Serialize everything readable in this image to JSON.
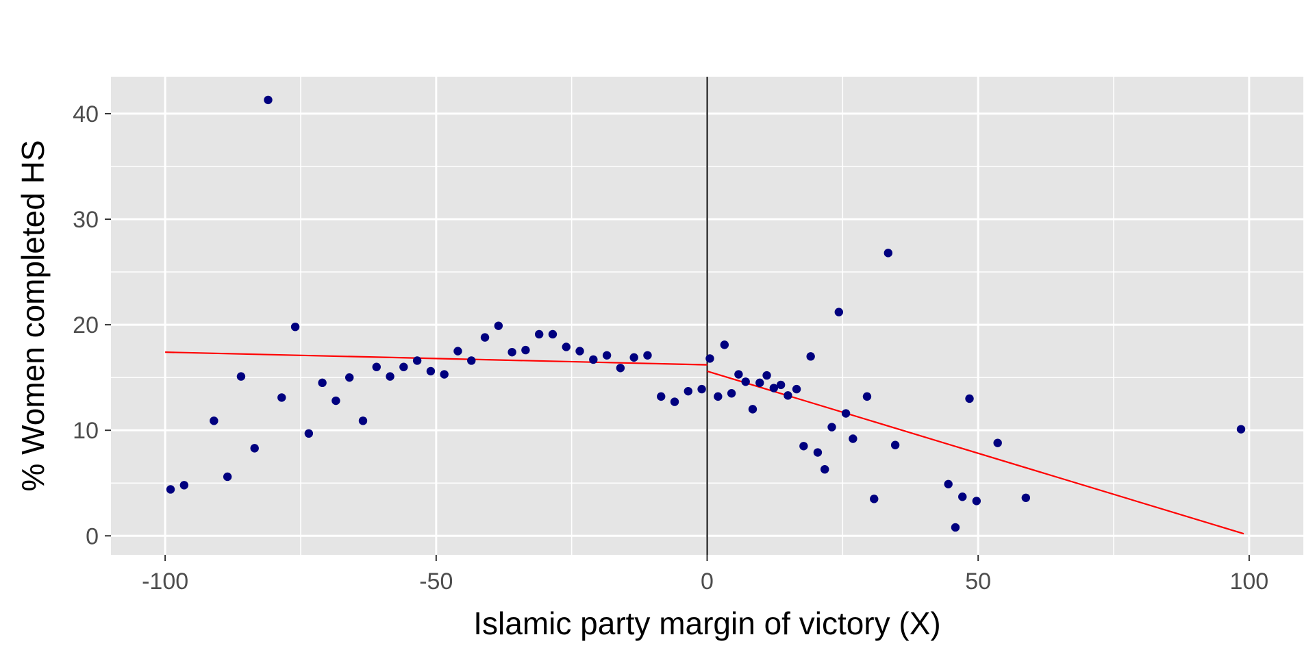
{
  "chart_data": {
    "type": "scatter",
    "xlabel": "Islamic party margin of victory (X)",
    "ylabel": "% Women completed HS",
    "xlim": [
      -110,
      110
    ],
    "ylim": [
      -1.8,
      43.5
    ],
    "x_ticks": [
      -100,
      -50,
      0,
      50,
      100
    ],
    "x_tick_labels": [
      "-100",
      "-50",
      "0",
      "50",
      "100"
    ],
    "y_ticks": [
      0,
      10,
      20,
      30,
      40
    ],
    "y_tick_labels": [
      "0",
      "10",
      "20",
      "30",
      "40"
    ],
    "grid": true,
    "cutoff_x": 0,
    "points": [
      {
        "x": -99,
        "y": 4.4
      },
      {
        "x": -96.5,
        "y": 4.8
      },
      {
        "x": -91,
        "y": 10.9
      },
      {
        "x": -88.5,
        "y": 5.6
      },
      {
        "x": -86,
        "y": 15.1
      },
      {
        "x": -83.5,
        "y": 8.3
      },
      {
        "x": -81,
        "y": 41.3
      },
      {
        "x": -78.5,
        "y": 13.1
      },
      {
        "x": -76,
        "y": 19.8
      },
      {
        "x": -73.5,
        "y": 9.7
      },
      {
        "x": -71,
        "y": 14.5
      },
      {
        "x": -68.5,
        "y": 12.8
      },
      {
        "x": -66,
        "y": 15.0
      },
      {
        "x": -63.5,
        "y": 10.9
      },
      {
        "x": -61,
        "y": 16.0
      },
      {
        "x": -58.5,
        "y": 15.1
      },
      {
        "x": -56,
        "y": 16.0
      },
      {
        "x": -53.5,
        "y": 16.6
      },
      {
        "x": -51,
        "y": 15.6
      },
      {
        "x": -48.5,
        "y": 15.3
      },
      {
        "x": -46,
        "y": 17.5
      },
      {
        "x": -43.5,
        "y": 16.6
      },
      {
        "x": -41,
        "y": 18.8
      },
      {
        "x": -38.5,
        "y": 19.9
      },
      {
        "x": -36,
        "y": 17.4
      },
      {
        "x": -33.5,
        "y": 17.6
      },
      {
        "x": -31,
        "y": 19.1
      },
      {
        "x": -28.5,
        "y": 19.1
      },
      {
        "x": -26,
        "y": 17.9
      },
      {
        "x": -23.5,
        "y": 17.5
      },
      {
        "x": -21,
        "y": 16.7
      },
      {
        "x": -18.5,
        "y": 17.1
      },
      {
        "x": -16,
        "y": 15.9
      },
      {
        "x": -13.5,
        "y": 16.9
      },
      {
        "x": -11,
        "y": 17.1
      },
      {
        "x": -8.5,
        "y": 13.2
      },
      {
        "x": -6,
        "y": 12.7
      },
      {
        "x": -3.5,
        "y": 13.7
      },
      {
        "x": -1,
        "y": 13.9
      },
      {
        "x": 0.5,
        "y": 16.8
      },
      {
        "x": 2,
        "y": 13.2
      },
      {
        "x": 3.2,
        "y": 18.1
      },
      {
        "x": 4.5,
        "y": 13.5
      },
      {
        "x": 5.8,
        "y": 15.3
      },
      {
        "x": 7.1,
        "y": 14.6
      },
      {
        "x": 8.4,
        "y": 12.0
      },
      {
        "x": 9.7,
        "y": 14.5
      },
      {
        "x": 11,
        "y": 15.2
      },
      {
        "x": 12.3,
        "y": 14.0
      },
      {
        "x": 13.6,
        "y": 14.3
      },
      {
        "x": 14.9,
        "y": 13.3
      },
      {
        "x": 16.5,
        "y": 13.9
      },
      {
        "x": 17.8,
        "y": 8.5
      },
      {
        "x": 19.1,
        "y": 17.0
      },
      {
        "x": 20.4,
        "y": 7.9
      },
      {
        "x": 21.7,
        "y": 6.3
      },
      {
        "x": 23,
        "y": 10.3
      },
      {
        "x": 24.3,
        "y": 21.2
      },
      {
        "x": 25.6,
        "y": 11.6
      },
      {
        "x": 26.9,
        "y": 9.2
      },
      {
        "x": 29.5,
        "y": 13.2
      },
      {
        "x": 30.8,
        "y": 3.5
      },
      {
        "x": 33.4,
        "y": 26.8
      },
      {
        "x": 34.7,
        "y": 8.6
      },
      {
        "x": 44.5,
        "y": 4.9
      },
      {
        "x": 45.8,
        "y": 0.8
      },
      {
        "x": 47.1,
        "y": 3.7
      },
      {
        "x": 48.4,
        "y": 13.0
      },
      {
        "x": 49.7,
        "y": 3.3
      },
      {
        "x": 53.6,
        "y": 8.8
      },
      {
        "x": 58.8,
        "y": 3.6
      },
      {
        "x": 98.5,
        "y": 10.1
      }
    ],
    "fit_lines": [
      {
        "x": [
          -100,
          0
        ],
        "y": [
          17.4,
          16.2
        ]
      },
      {
        "x": [
          0,
          99
        ],
        "y": [
          15.6,
          0.2
        ]
      }
    ],
    "colors": {
      "panel_background": "#e5e5e5",
      "grid": "#ffffff",
      "points": "#00007f",
      "fit_line": "#ff0000",
      "cutoff_line": "#000000"
    }
  }
}
